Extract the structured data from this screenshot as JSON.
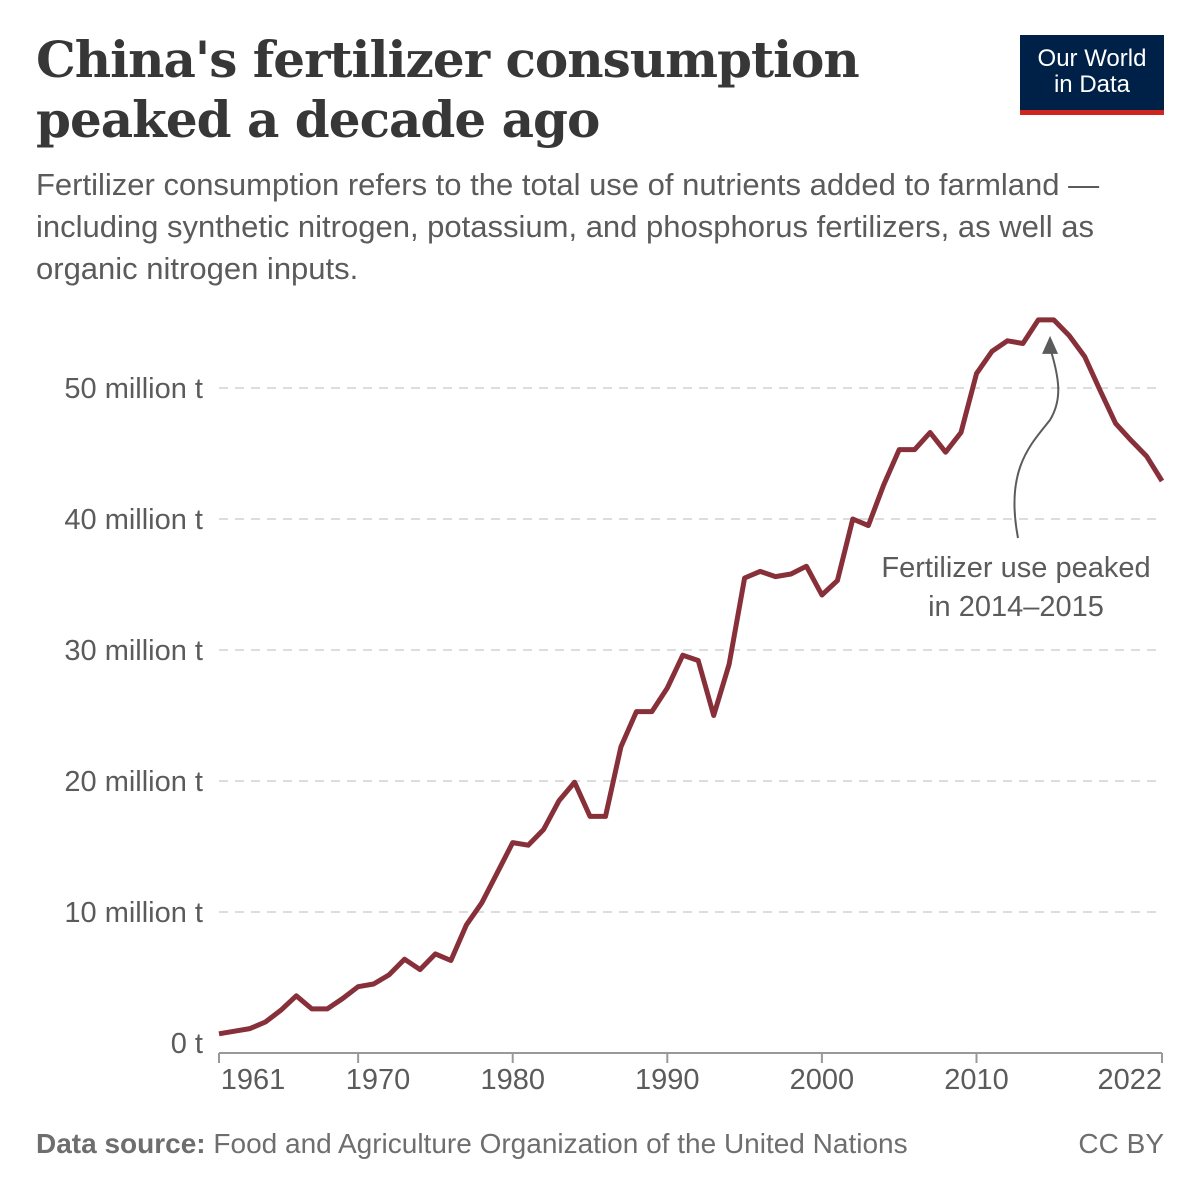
{
  "header": {
    "title": "China's fertilizer consumption peaked a decade ago",
    "subtitle": "Fertilizer consumption refers to the total use of nutrients added to farmland — including synthetic nitrogen, potassium, and phosphorus fertilizers, as well as organic nitrogen inputs.",
    "logo_line1": "Our World",
    "logo_line2": "in Data"
  },
  "footer": {
    "source_label": "Data source:",
    "source": "Food and Agriculture Organization of the United Nations",
    "license": "CC BY"
  },
  "colors": {
    "line": "#883039",
    "logo_bg": "#002147",
    "logo_accent": "#ce261e",
    "grid": "#dddddd"
  },
  "chart_data": {
    "type": "line",
    "title": "China's fertilizer consumption peaked a decade ago",
    "xlabel": "",
    "ylabel": "",
    "xlim": [
      1961,
      2022
    ],
    "ylim": [
      0,
      55
    ],
    "grid": "horizontal dashed",
    "x_ticks": [
      1961,
      1970,
      1980,
      1990,
      2000,
      2010,
      2022
    ],
    "y_ticks": [
      0,
      10,
      20,
      30,
      40,
      50
    ],
    "y_tick_labels": [
      "0 t",
      "10 million t",
      "20 million t",
      "30 million t",
      "40 million t",
      "50 million t"
    ],
    "annotation": {
      "line1": "Fertilizer use peaked",
      "line2": "in 2014–2015",
      "points_to": [
        2014.5,
        55.2
      ]
    },
    "x": [
      1961,
      1962,
      1963,
      1964,
      1965,
      1966,
      1967,
      1968,
      1969,
      1970,
      1971,
      1972,
      1973,
      1974,
      1975,
      1976,
      1977,
      1978,
      1979,
      1980,
      1981,
      1982,
      1983,
      1984,
      1985,
      1986,
      1987,
      1988,
      1989,
      1990,
      1991,
      1992,
      1993,
      1994,
      1995,
      1996,
      1997,
      1998,
      1999,
      2000,
      2001,
      2002,
      2003,
      2004,
      2005,
      2006,
      2007,
      2008,
      2009,
      2010,
      2011,
      2012,
      2013,
      2014,
      2015,
      2016,
      2017,
      2018,
      2019,
      2020,
      2021,
      2022
    ],
    "values": [
      0.7,
      0.9,
      1.1,
      1.6,
      2.5,
      3.6,
      2.6,
      2.6,
      3.4,
      4.3,
      4.5,
      5.2,
      6.4,
      5.6,
      6.8,
      6.3,
      9.0,
      10.7,
      13.0,
      15.3,
      15.1,
      16.3,
      18.5,
      19.9,
      17.3,
      17.3,
      22.6,
      25.3,
      25.3,
      27.1,
      29.6,
      29.2,
      25.0,
      28.9,
      35.5,
      36.0,
      35.6,
      35.8,
      36.4,
      34.2,
      35.3,
      40.0,
      39.5,
      42.6,
      45.3,
      45.3,
      46.6,
      45.1,
      46.6,
      51.1,
      52.8,
      53.6,
      53.4,
      55.2,
      55.2,
      54.0,
      52.4,
      49.8,
      47.3,
      46.0,
      44.8,
      42.9
    ],
    "unit": "t"
  }
}
